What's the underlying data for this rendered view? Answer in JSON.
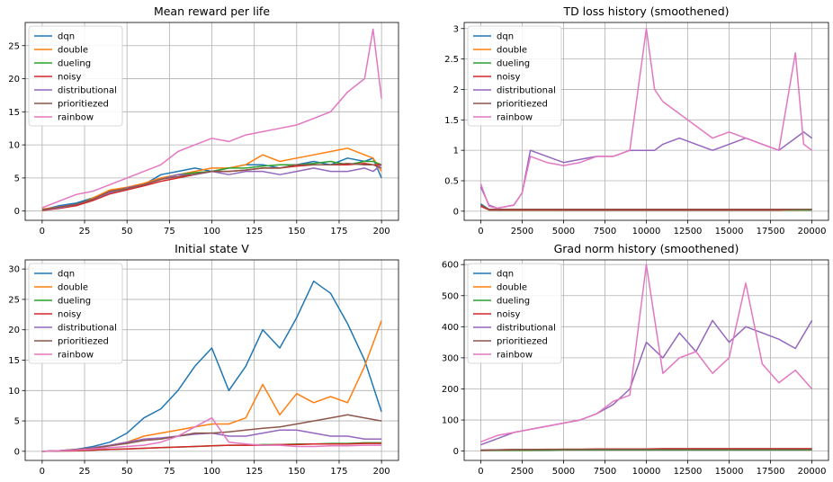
{
  "figure": {
    "legend_entries": [
      "dqn",
      "double",
      "dueling",
      "noisy",
      "distributional",
      "prioritiezed",
      "rainbow"
    ],
    "colors": {
      "dqn": "#1f77b4",
      "double": "#ff7f0e",
      "dueling": "#2ca02c",
      "noisy": "#d62728",
      "distributional": "#9467bd",
      "prioritiezed": "#8c564b",
      "rainbow": "#e377c2"
    }
  },
  "chart_data": [
    {
      "type": "line",
      "title": "Mean reward per life",
      "xlabel": "",
      "ylabel": "",
      "xlim": [
        -10,
        210
      ],
      "ylim": [
        -1.4,
        28.5
      ],
      "xticks": [
        0,
        25,
        50,
        75,
        100,
        125,
        150,
        175,
        200
      ],
      "yticks": [
        0,
        5,
        10,
        15,
        20,
        25
      ],
      "grid": true,
      "legend": "top-left",
      "x": [
        0,
        10,
        20,
        30,
        40,
        50,
        60,
        70,
        80,
        90,
        100,
        110,
        120,
        130,
        140,
        150,
        160,
        170,
        180,
        190,
        195,
        200
      ],
      "series": [
        {
          "name": "dqn",
          "values": [
            0.2,
            0.8,
            1.2,
            2.0,
            3.0,
            3.5,
            4.0,
            5.5,
            6.0,
            6.5,
            6.0,
            6.5,
            7.0,
            7.0,
            6.5,
            7.0,
            7.5,
            7.0,
            8.0,
            7.5,
            8.0,
            5.0
          ]
        },
        {
          "name": "double",
          "values": [
            0.3,
            0.6,
            0.8,
            2.0,
            3.2,
            3.6,
            4.2,
            5.0,
            5.5,
            6.0,
            6.5,
            6.5,
            7.0,
            8.5,
            7.5,
            8.0,
            8.5,
            9.0,
            9.5,
            8.5,
            8.0,
            6.0
          ]
        },
        {
          "name": "dueling",
          "values": [
            0.2,
            0.5,
            0.9,
            1.8,
            2.8,
            3.4,
            4.0,
            4.8,
            5.5,
            5.8,
            6.0,
            6.5,
            6.5,
            6.8,
            7.0,
            7.0,
            7.2,
            7.5,
            7.0,
            7.5,
            7.5,
            7.0
          ]
        },
        {
          "name": "noisy",
          "values": [
            0.1,
            0.4,
            0.8,
            1.6,
            2.6,
            3.2,
            3.8,
            4.5,
            5.0,
            5.5,
            6.0,
            6.0,
            6.2,
            6.5,
            6.5,
            6.8,
            7.0,
            7.0,
            7.0,
            7.2,
            7.0,
            7.0
          ]
        },
        {
          "name": "distributional",
          "values": [
            0.2,
            0.5,
            1.0,
            1.8,
            2.8,
            3.5,
            4.0,
            4.8,
            5.5,
            5.5,
            6.0,
            5.5,
            6.0,
            6.0,
            5.5,
            6.0,
            6.5,
            6.0,
            6.0,
            6.5,
            6.0,
            7.0
          ]
        },
        {
          "name": "prioritiezed",
          "values": [
            0.2,
            0.6,
            1.0,
            1.8,
            3.0,
            3.4,
            4.0,
            4.8,
            5.2,
            5.6,
            6.0,
            6.0,
            6.2,
            6.5,
            6.5,
            7.0,
            7.0,
            7.0,
            7.2,
            7.0,
            7.0,
            6.5
          ]
        },
        {
          "name": "rainbow",
          "values": [
            0.5,
            1.5,
            2.5,
            3.0,
            4.0,
            5.0,
            6.0,
            7.0,
            9.0,
            10.0,
            11.0,
            10.5,
            11.5,
            12.0,
            12.5,
            13.0,
            14.0,
            15.0,
            18.0,
            20.0,
            27.5,
            17.0
          ]
        }
      ]
    },
    {
      "type": "line",
      "title": "TD loss history (smoothened)",
      "xlabel": "",
      "ylabel": "",
      "xlim": [
        -1000,
        21000
      ],
      "ylim": [
        -0.15,
        3.1
      ],
      "xticks": [
        0,
        2500,
        5000,
        7500,
        10000,
        12500,
        15000,
        17500,
        20000
      ],
      "yticks": [
        0.0,
        0.5,
        1.0,
        1.5,
        2.0,
        2.5,
        3.0
      ],
      "grid": true,
      "legend": "top-left",
      "x": [
        0,
        500,
        1000,
        2000,
        2500,
        3000,
        4000,
        5000,
        6000,
        7000,
        8000,
        9000,
        10000,
        10500,
        11000,
        12000,
        13000,
        14000,
        15000,
        16000,
        17000,
        18000,
        19000,
        19500,
        20000
      ],
      "series": [
        {
          "name": "dqn",
          "values": [
            0.12,
            0.03,
            0.03,
            0.03,
            0.03,
            0.03,
            0.03,
            0.02,
            0.02,
            0.02,
            0.02,
            0.02,
            0.02,
            0.02,
            0.02,
            0.02,
            0.02,
            0.02,
            0.02,
            0.02,
            0.02,
            0.02,
            0.03,
            0.03,
            0.03
          ]
        },
        {
          "name": "double",
          "values": [
            0.1,
            0.03,
            0.02,
            0.02,
            0.02,
            0.02,
            0.02,
            0.02,
            0.02,
            0.02,
            0.02,
            0.02,
            0.02,
            0.02,
            0.02,
            0.02,
            0.02,
            0.02,
            0.02,
            0.02,
            0.02,
            0.02,
            0.02,
            0.02,
            0.02
          ]
        },
        {
          "name": "dueling",
          "values": [
            0.1,
            0.02,
            0.02,
            0.02,
            0.02,
            0.02,
            0.02,
            0.02,
            0.02,
            0.02,
            0.02,
            0.02,
            0.02,
            0.02,
            0.02,
            0.02,
            0.02,
            0.02,
            0.02,
            0.02,
            0.02,
            0.02,
            0.02,
            0.02,
            0.02
          ]
        },
        {
          "name": "noisy",
          "values": [
            0.08,
            0.02,
            0.02,
            0.02,
            0.02,
            0.02,
            0.02,
            0.02,
            0.02,
            0.02,
            0.02,
            0.02,
            0.02,
            0.02,
            0.02,
            0.02,
            0.02,
            0.02,
            0.02,
            0.02,
            0.02,
            0.02,
            0.03,
            0.03,
            0.03
          ]
        },
        {
          "name": "distributional",
          "values": [
            0.4,
            0.1,
            0.05,
            0.1,
            0.3,
            1.0,
            0.9,
            0.8,
            0.85,
            0.9,
            0.9,
            1.0,
            1.0,
            1.0,
            1.1,
            1.2,
            1.1,
            1.0,
            1.1,
            1.2,
            1.1,
            1.0,
            1.2,
            1.3,
            1.2
          ]
        },
        {
          "name": "prioritiezed",
          "values": [
            0.1,
            0.03,
            0.03,
            0.03,
            0.03,
            0.03,
            0.03,
            0.03,
            0.03,
            0.03,
            0.03,
            0.03,
            0.03,
            0.03,
            0.03,
            0.03,
            0.03,
            0.03,
            0.03,
            0.03,
            0.03,
            0.03,
            0.03,
            0.03,
            0.03
          ]
        },
        {
          "name": "rainbow",
          "values": [
            0.45,
            0.08,
            0.05,
            0.1,
            0.3,
            0.9,
            0.8,
            0.75,
            0.8,
            0.9,
            0.9,
            1.0,
            3.0,
            2.0,
            1.8,
            1.6,
            1.4,
            1.2,
            1.3,
            1.2,
            1.1,
            1.0,
            2.6,
            1.1,
            1.0
          ]
        }
      ]
    },
    {
      "type": "line",
      "title": "Initial state V",
      "xlabel": "",
      "ylabel": "",
      "xlim": [
        -10,
        210
      ],
      "ylim": [
        -1.5,
        31.5
      ],
      "xticks": [
        0,
        25,
        50,
        75,
        100,
        125,
        150,
        175,
        200
      ],
      "yticks": [
        0,
        5,
        10,
        15,
        20,
        25,
        30
      ],
      "grid": true,
      "legend": "top-left",
      "x": [
        0,
        10,
        20,
        30,
        40,
        50,
        60,
        70,
        80,
        90,
        100,
        110,
        120,
        130,
        140,
        150,
        160,
        170,
        180,
        190,
        200
      ],
      "series": [
        {
          "name": "dqn",
          "values": [
            0,
            0.1,
            0.3,
            0.8,
            1.5,
            3.0,
            5.5,
            7.0,
            10.0,
            14.0,
            17.0,
            10.0,
            14.0,
            20.0,
            17.0,
            22.0,
            28.0,
            26.0,
            21.0,
            15.0,
            6.5
          ]
        },
        {
          "name": "double",
          "values": [
            0,
            0.1,
            0.2,
            0.5,
            1.0,
            1.5,
            2.5,
            3.0,
            3.5,
            4.0,
            4.5,
            4.5,
            5.5,
            11.0,
            6.0,
            9.5,
            8.0,
            9.0,
            8.0,
            14.0,
            21.5
          ]
        },
        {
          "name": "dueling",
          "values": [
            0,
            0.05,
            0.1,
            0.2,
            0.3,
            0.4,
            0.5,
            0.6,
            0.7,
            0.8,
            0.9,
            1.0,
            1.0,
            1.1,
            1.1,
            1.2,
            1.2,
            1.3,
            1.3,
            1.4,
            1.4
          ]
        },
        {
          "name": "noisy",
          "values": [
            0,
            0.05,
            0.1,
            0.2,
            0.3,
            0.4,
            0.5,
            0.6,
            0.7,
            0.8,
            0.9,
            1.0,
            1.0,
            1.0,
            1.1,
            1.1,
            1.2,
            1.2,
            1.2,
            1.3,
            1.3
          ]
        },
        {
          "name": "distributional",
          "values": [
            0,
            0.1,
            0.3,
            0.6,
            1.0,
            1.5,
            2.0,
            2.2,
            2.5,
            2.8,
            3.0,
            2.5,
            2.5,
            3.0,
            3.5,
            3.5,
            3.0,
            2.5,
            2.5,
            2.0,
            2.0
          ]
        },
        {
          "name": "prioritiezed",
          "values": [
            0,
            0.1,
            0.3,
            0.5,
            0.9,
            1.3,
            1.8,
            2.0,
            2.5,
            3.0,
            3.0,
            3.2,
            3.5,
            3.8,
            4.0,
            4.5,
            5.0,
            5.5,
            6.0,
            5.5,
            5.0
          ]
        },
        {
          "name": "rainbow",
          "values": [
            0,
            0.1,
            0.2,
            0.4,
            0.6,
            0.8,
            1.0,
            1.5,
            2.5,
            4.0,
            5.5,
            1.5,
            1.2,
            1.0,
            1.0,
            0.8,
            0.8,
            0.9,
            0.9,
            1.0,
            1.0
          ]
        }
      ]
    },
    {
      "type": "line",
      "title": "Grad norm history (smoothened)",
      "xlabel": "",
      "ylabel": "",
      "xlim": [
        -1000,
        21000
      ],
      "ylim": [
        -30,
        615
      ],
      "xticks": [
        0,
        2500,
        5000,
        7500,
        10000,
        12500,
        15000,
        17500,
        20000
      ],
      "yticks": [
        0,
        100,
        200,
        300,
        400,
        500,
        600
      ],
      "grid": true,
      "legend": "top-left",
      "x": [
        0,
        1000,
        2000,
        3000,
        4000,
        5000,
        6000,
        7000,
        8000,
        9000,
        10000,
        11000,
        12000,
        13000,
        14000,
        15000,
        16000,
        17000,
        18000,
        19000,
        20000
      ],
      "series": [
        {
          "name": "dqn",
          "values": [
            2,
            3,
            3,
            4,
            4,
            4,
            4,
            5,
            5,
            5,
            5,
            5,
            5,
            5,
            5,
            5,
            5,
            5,
            5,
            5,
            5
          ]
        },
        {
          "name": "double",
          "values": [
            2,
            3,
            3,
            3,
            4,
            4,
            4,
            4,
            4,
            4,
            4,
            4,
            4,
            4,
            4,
            4,
            4,
            4,
            4,
            4,
            4
          ]
        },
        {
          "name": "dueling",
          "values": [
            2,
            3,
            3,
            3,
            3,
            4,
            4,
            4,
            4,
            4,
            4,
            4,
            4,
            4,
            4,
            4,
            4,
            4,
            4,
            4,
            4
          ]
        },
        {
          "name": "noisy",
          "values": [
            3,
            4,
            5,
            5,
            6,
            6,
            6,
            7,
            7,
            7,
            7,
            8,
            8,
            8,
            8,
            8,
            8,
            8,
            8,
            8,
            8
          ]
        },
        {
          "name": "distributional",
          "values": [
            20,
            40,
            60,
            70,
            80,
            90,
            100,
            120,
            150,
            200,
            350,
            300,
            380,
            320,
            420,
            350,
            400,
            380,
            360,
            330,
            420
          ]
        },
        {
          "name": "prioritiezed",
          "values": [
            3,
            4,
            5,
            5,
            5,
            6,
            6,
            6,
            6,
            6,
            6,
            6,
            6,
            6,
            6,
            6,
            6,
            6,
            6,
            6,
            6
          ]
        },
        {
          "name": "rainbow",
          "values": [
            30,
            50,
            60,
            70,
            80,
            90,
            100,
            120,
            160,
            180,
            600,
            250,
            300,
            320,
            250,
            300,
            540,
            280,
            220,
            260,
            200
          ]
        }
      ]
    }
  ]
}
